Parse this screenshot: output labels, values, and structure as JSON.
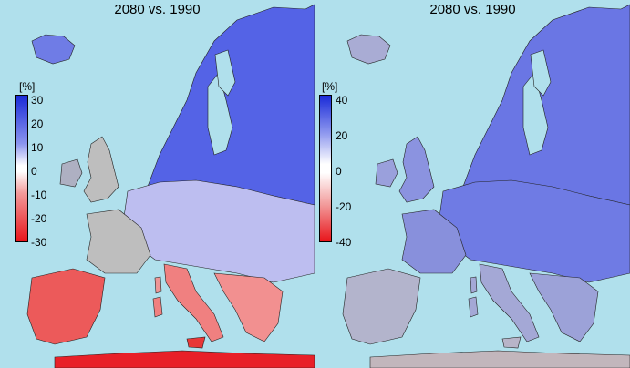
{
  "panels": [
    {
      "title": "2080 vs. 1990",
      "unit": "[%]",
      "ticks": [
        "30",
        "20",
        "10",
        "0",
        "-10",
        "-20",
        "-30"
      ],
      "range": [
        -30,
        30
      ]
    },
    {
      "title": "2080 vs. 1990",
      "unit": "[%]",
      "ticks": [
        "40",
        "20",
        "0",
        "-20",
        "-40"
      ],
      "range": [
        -40,
        40
      ]
    }
  ],
  "colors": {
    "sea": "#b0e0ec",
    "land_neutral": "#bebebe",
    "scale_top": "#1a2bd8",
    "scale_bottom": "#e8141a"
  }
}
